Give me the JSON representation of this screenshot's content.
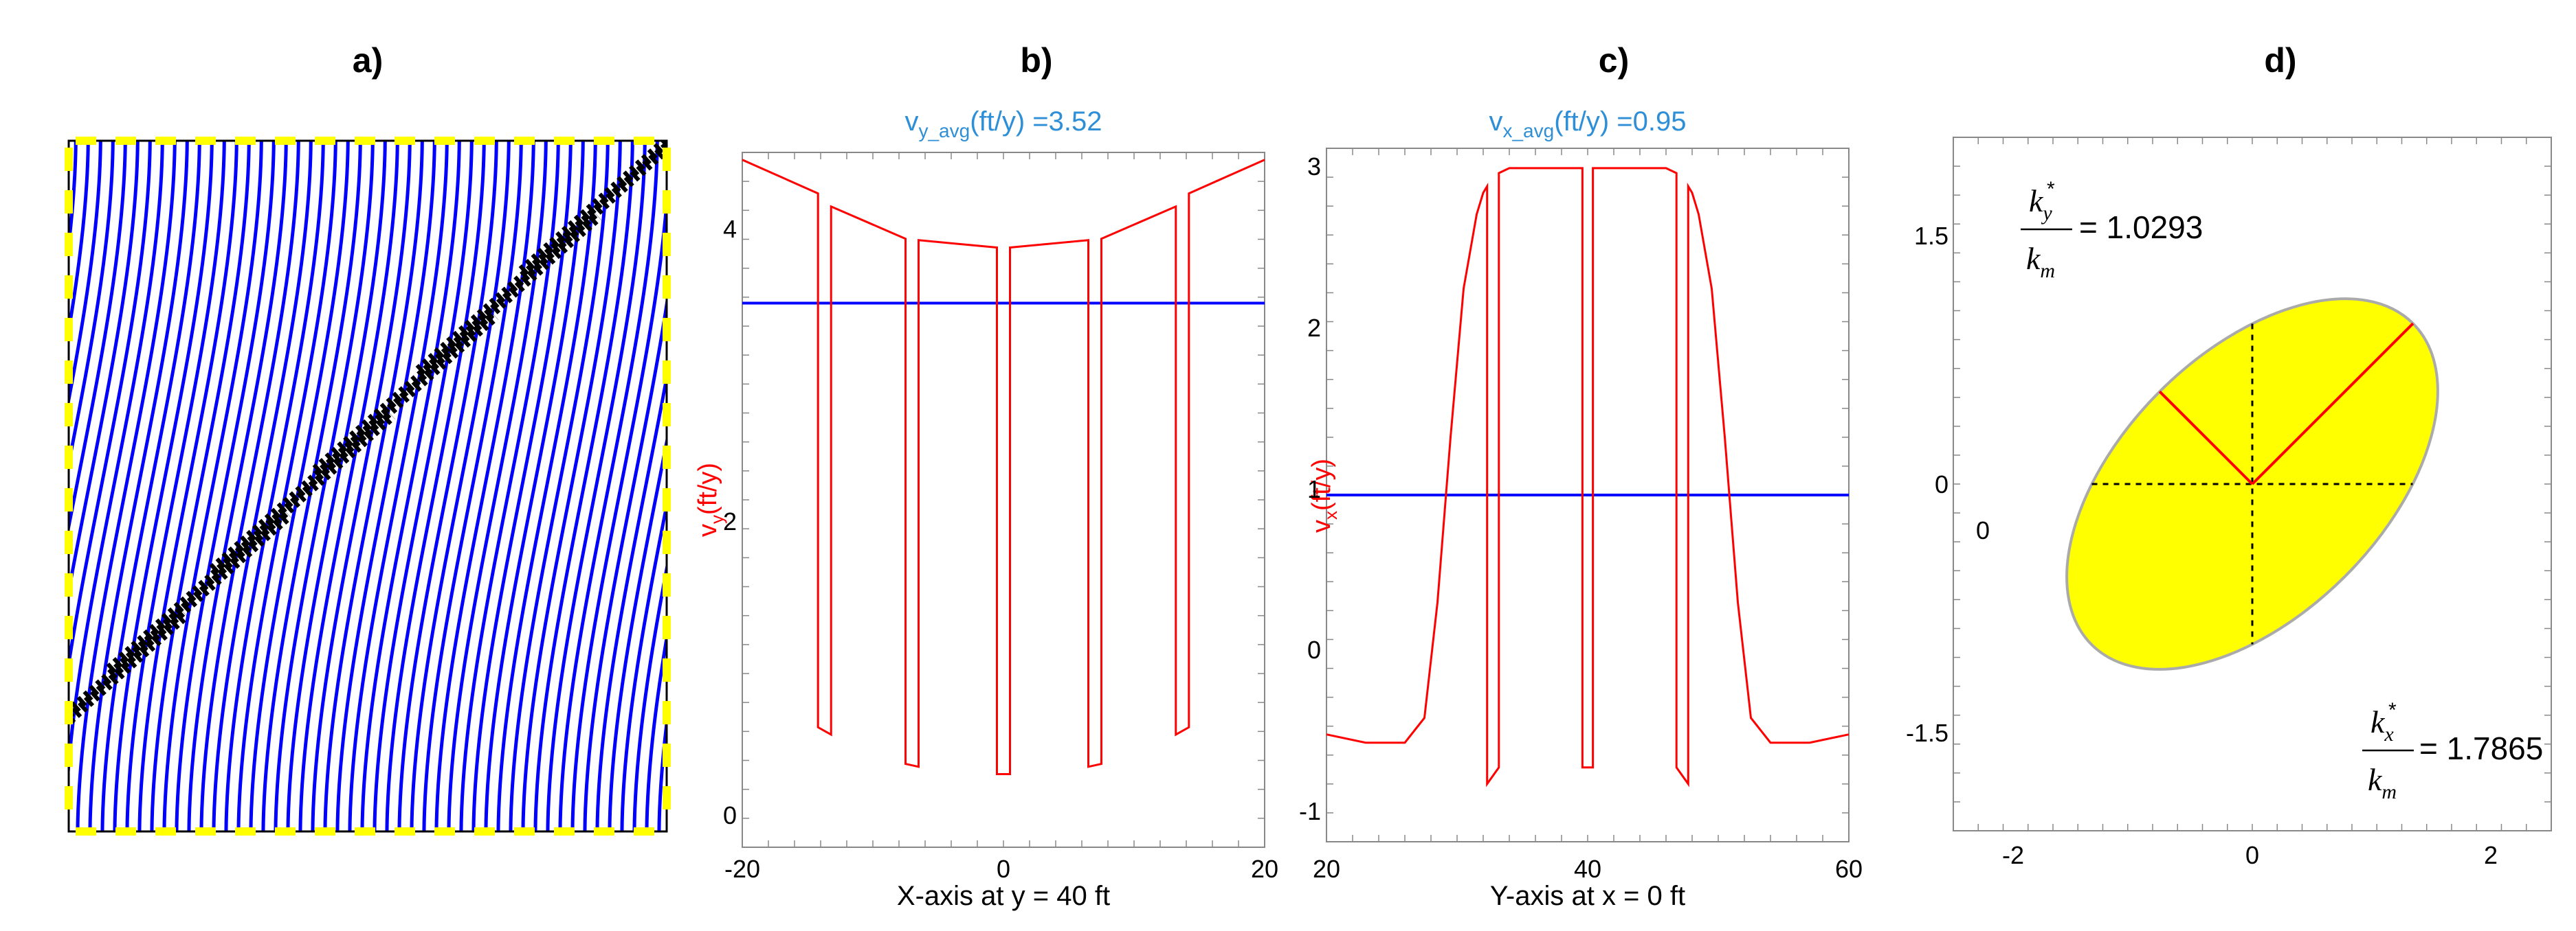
{
  "colors": {
    "blue_line": "#0000ff",
    "red_line": "#ff0000",
    "avg_title": "#2e8fd6",
    "ellipse_fill": "#ffff00",
    "frame_dash": "#ffff00",
    "fracture": "#000000"
  },
  "panels": {
    "a": {
      "label": "a)"
    },
    "b": {
      "label": "b)"
    },
    "c": {
      "label": "c)"
    },
    "d": {
      "label": "d)"
    }
  },
  "chart_data": [
    {
      "panel": "b",
      "type": "line",
      "title": "v",
      "title_sub": "y_avg",
      "title_tail": "(ft/y) =3.52",
      "xlabel": "X-axis at y = 40 ft",
      "ylabel_main": "v",
      "ylabel_sub": "y",
      "ylabel_tail": "(ft/y)",
      "xlim": [
        -20,
        20
      ],
      "ylim": [
        -0.2,
        4.55
      ],
      "xticks": [
        "-20",
        "0",
        "20"
      ],
      "yticks": [
        "0",
        "2",
        "4"
      ],
      "average": 3.52,
      "series": [
        {
          "color": "red",
          "x": [
            -20,
            -14.2,
            -14.2,
            -13.2,
            -13.2,
            -7.5,
            -7.5,
            -6.5,
            -6.5,
            -0.5,
            -0.5,
            0.5,
            0.5,
            6.5,
            6.5,
            7.5,
            7.5,
            13.2,
            13.2,
            14.2,
            14.2,
            20
          ],
          "y": [
            4.5,
            4.27,
            0.62,
            0.57,
            4.18,
            3.96,
            0.37,
            0.35,
            3.95,
            3.9,
            0.3,
            0.3,
            3.9,
            3.95,
            0.35,
            0.37,
            3.96,
            4.18,
            0.57,
            0.62,
            4.27,
            4.5
          ]
        }
      ]
    },
    {
      "panel": "c",
      "type": "line",
      "title": "v",
      "title_sub": "x_avg",
      "title_tail": "(ft/y) =0.95",
      "xlabel": "Y-axis at x = 0 ft",
      "ylabel_main": "v",
      "ylabel_sub": "x",
      "ylabel_tail": "(ft/y)",
      "xlim": [
        20,
        60
      ],
      "ylim": [
        -1.15,
        3.05
      ],
      "xticks": [
        "20",
        "40",
        "60"
      ],
      "yticks": [
        "-1",
        "0",
        "1",
        "2",
        "3"
      ],
      "average": 0.95,
      "series": [
        {
          "color": "red",
          "x": [
            20,
            23,
            26,
            27.5,
            28.5,
            29.5,
            30.5,
            31.5,
            32,
            32.3,
            32.3,
            33.2,
            33.2,
            34,
            34,
            38.8,
            38.8,
            39.6,
            39.6,
            40.4,
            40.4,
            41.2,
            41.2,
            46,
            46,
            46.8,
            46.8,
            47.7,
            47.7,
            48,
            48.5,
            49.5,
            50.5,
            51.5,
            52.5,
            54,
            57,
            60
          ],
          "y": [
            -0.5,
            -0.55,
            -0.55,
            -0.4,
            0.3,
            1.3,
            2.2,
            2.65,
            2.78,
            2.82,
            -0.8,
            -0.7,
            2.9,
            2.93,
            2.93,
            2.93,
            2.93,
            2.93,
            -0.7,
            -0.7,
            2.93,
            2.93,
            2.93,
            2.93,
            2.93,
            2.9,
            -0.7,
            -0.8,
            2.82,
            2.78,
            2.65,
            2.2,
            1.3,
            0.3,
            -0.4,
            -0.55,
            -0.55,
            -0.5
          ]
        }
      ]
    },
    {
      "panel": "d",
      "type": "scatter",
      "xlim": [
        -2.35,
        2.35
      ],
      "ylim": [
        -1.9,
        1.9
      ],
      "xticks": [
        "-2",
        "0",
        "2"
      ],
      "yticks": [
        "1.5",
        "0",
        "-1.5"
      ],
      "origin_label": "0",
      "ky_ratio": {
        "num": "k",
        "num_sub": "y",
        "sup": "*",
        "den": "k",
        "den_sub": "m",
        "value": "= 1.0293"
      },
      "kx_ratio": {
        "num": "k",
        "num_sub": "x",
        "sup": "*",
        "den": "k",
        "den_sub": "m",
        "value": "= 1.7865"
      },
      "ellipse": {
        "semi_major": 1.7865,
        "semi_minor": 1.0293,
        "angle_deg": 45
      }
    }
  ]
}
